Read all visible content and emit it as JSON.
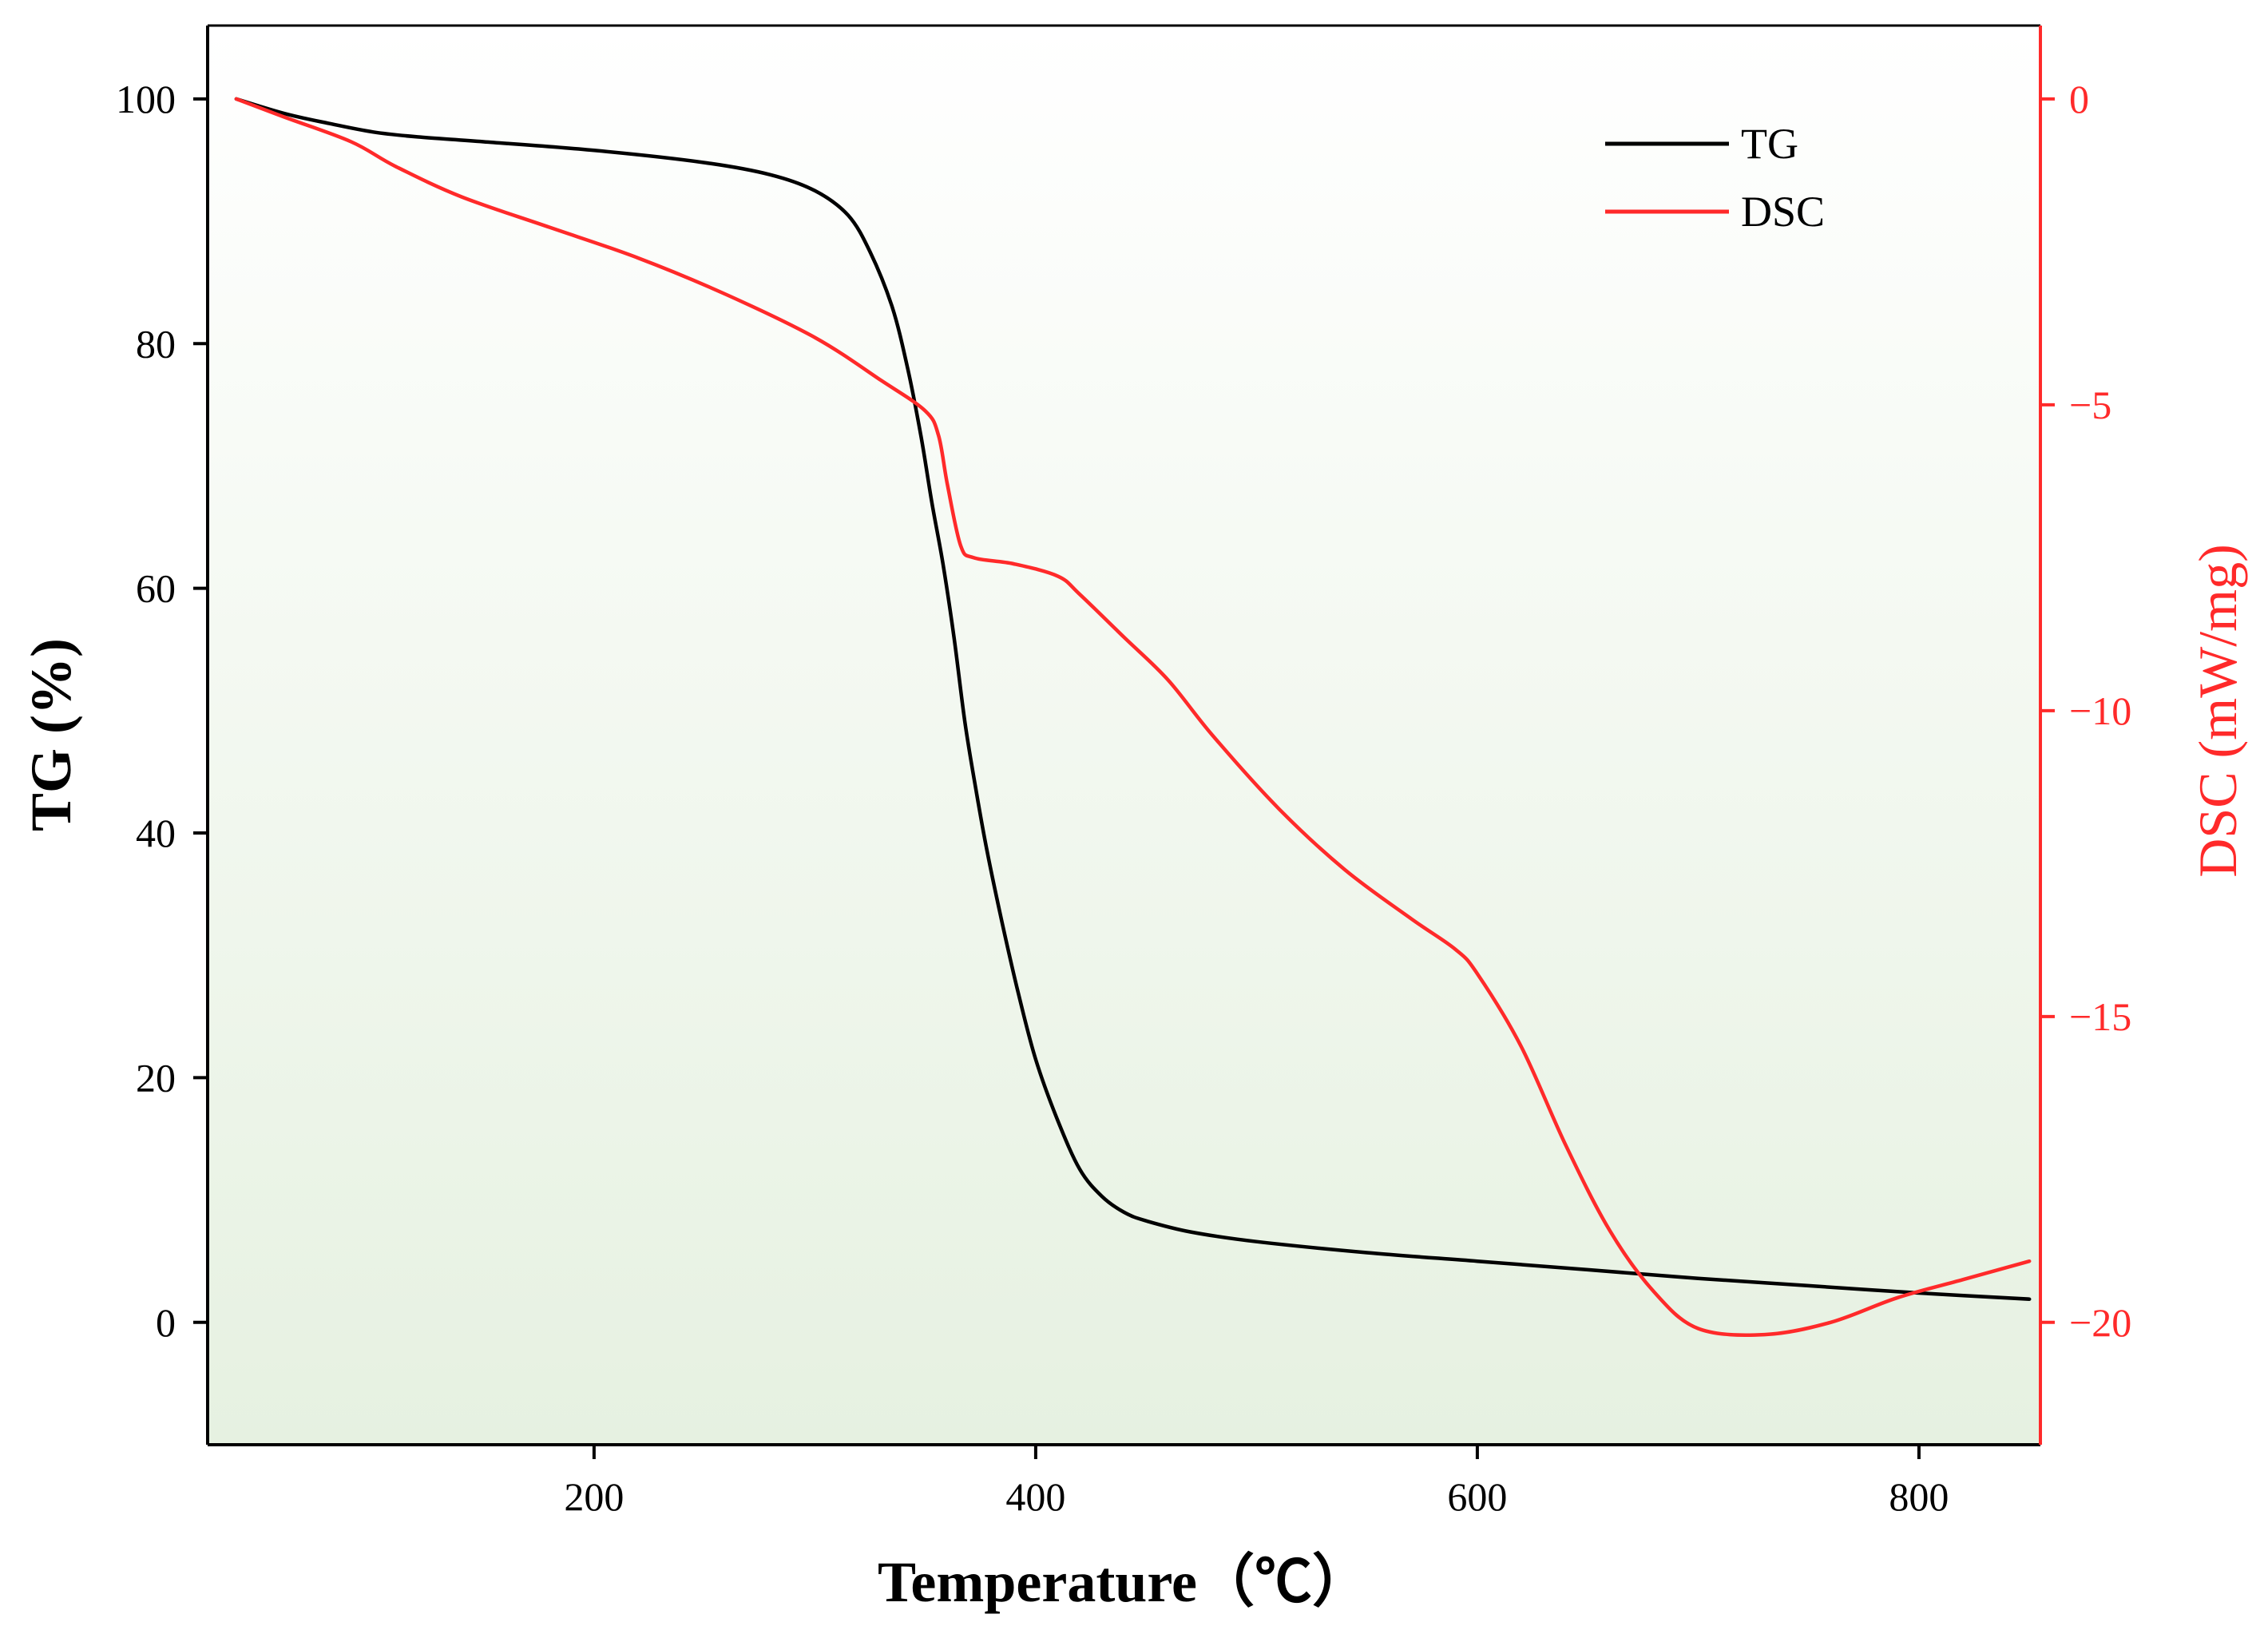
{
  "chart_data": {
    "type": "line",
    "title": "",
    "xlabel": "Temperature（℃）",
    "ylabel_left": "TG (%)",
    "ylabel_right": "DSC (mW/mg)",
    "xlim": [
      25,
      855
    ],
    "ylim_left": [
      -10,
      106
    ],
    "ylim_right": [
      -22,
      1.2
    ],
    "x_ticks": [
      200,
      400,
      600,
      800
    ],
    "x_tick_labels": [
      "200",
      "400",
      "600",
      "800"
    ],
    "y_left_ticks": [
      0,
      20,
      40,
      60,
      80,
      100
    ],
    "y_left_tick_labels": [
      "0",
      "20",
      "40",
      "60",
      "80",
      "100"
    ],
    "y_right_ticks": [
      0,
      -5,
      -10,
      -15,
      -20
    ],
    "y_right_tick_labels": [
      "0",
      "−5",
      "−10",
      "−15",
      "−20"
    ],
    "grid": false,
    "legend_position": "top-right",
    "colors": {
      "TG": "#000000",
      "DSC": "#ff2a2a",
      "right_axis": "#ff2a2a"
    },
    "series": [
      {
        "name": "TG",
        "axis": "left",
        "x": [
          38,
          60,
          80,
          100,
          120,
          150,
          200,
          250,
          280,
          300,
          315,
          325,
          335,
          342,
          348,
          353,
          358,
          363,
          368,
          373,
          378,
          385,
          392,
          400,
          410,
          420,
          430,
          440,
          450,
          470,
          500,
          550,
          600,
          650,
          700,
          750,
          800,
          850
        ],
        "y": [
          100,
          98.8,
          98,
          97.3,
          96.9,
          96.5,
          95.8,
          94.8,
          93.8,
          92.5,
          90.5,
          87.5,
          83,
          78,
          72.5,
          67,
          62,
          56,
          49,
          43.5,
          38.5,
          32.5,
          27,
          21.5,
          16.5,
          12.5,
          10.3,
          9,
          8.3,
          7.4,
          6.6,
          5.7,
          5,
          4.3,
          3.6,
          3,
          2.4,
          1.9
        ]
      },
      {
        "name": "DSC",
        "axis": "right",
        "x": [
          38,
          60,
          90,
          110,
          140,
          180,
          220,
          260,
          300,
          330,
          350,
          356,
          360,
          366,
          372,
          390,
          410,
          420,
          440,
          460,
          480,
          510,
          540,
          570,
          590,
          600,
          620,
          640,
          660,
          680,
          700,
          730,
          760,
          790,
          820,
          850
        ],
        "y": [
          0,
          -0.3,
          -0.7,
          -1.1,
          -1.6,
          -2.1,
          -2.6,
          -3.2,
          -3.9,
          -4.6,
          -5.1,
          -5.5,
          -6.3,
          -7.3,
          -7.5,
          -7.6,
          -7.8,
          -8.1,
          -8.8,
          -9.5,
          -10.4,
          -11.6,
          -12.6,
          -13.4,
          -13.9,
          -14.3,
          -15.5,
          -17.1,
          -18.5,
          -19.5,
          -20.1,
          -20.2,
          -20.0,
          -19.6,
          -19.3,
          -19.0
        ]
      }
    ]
  }
}
